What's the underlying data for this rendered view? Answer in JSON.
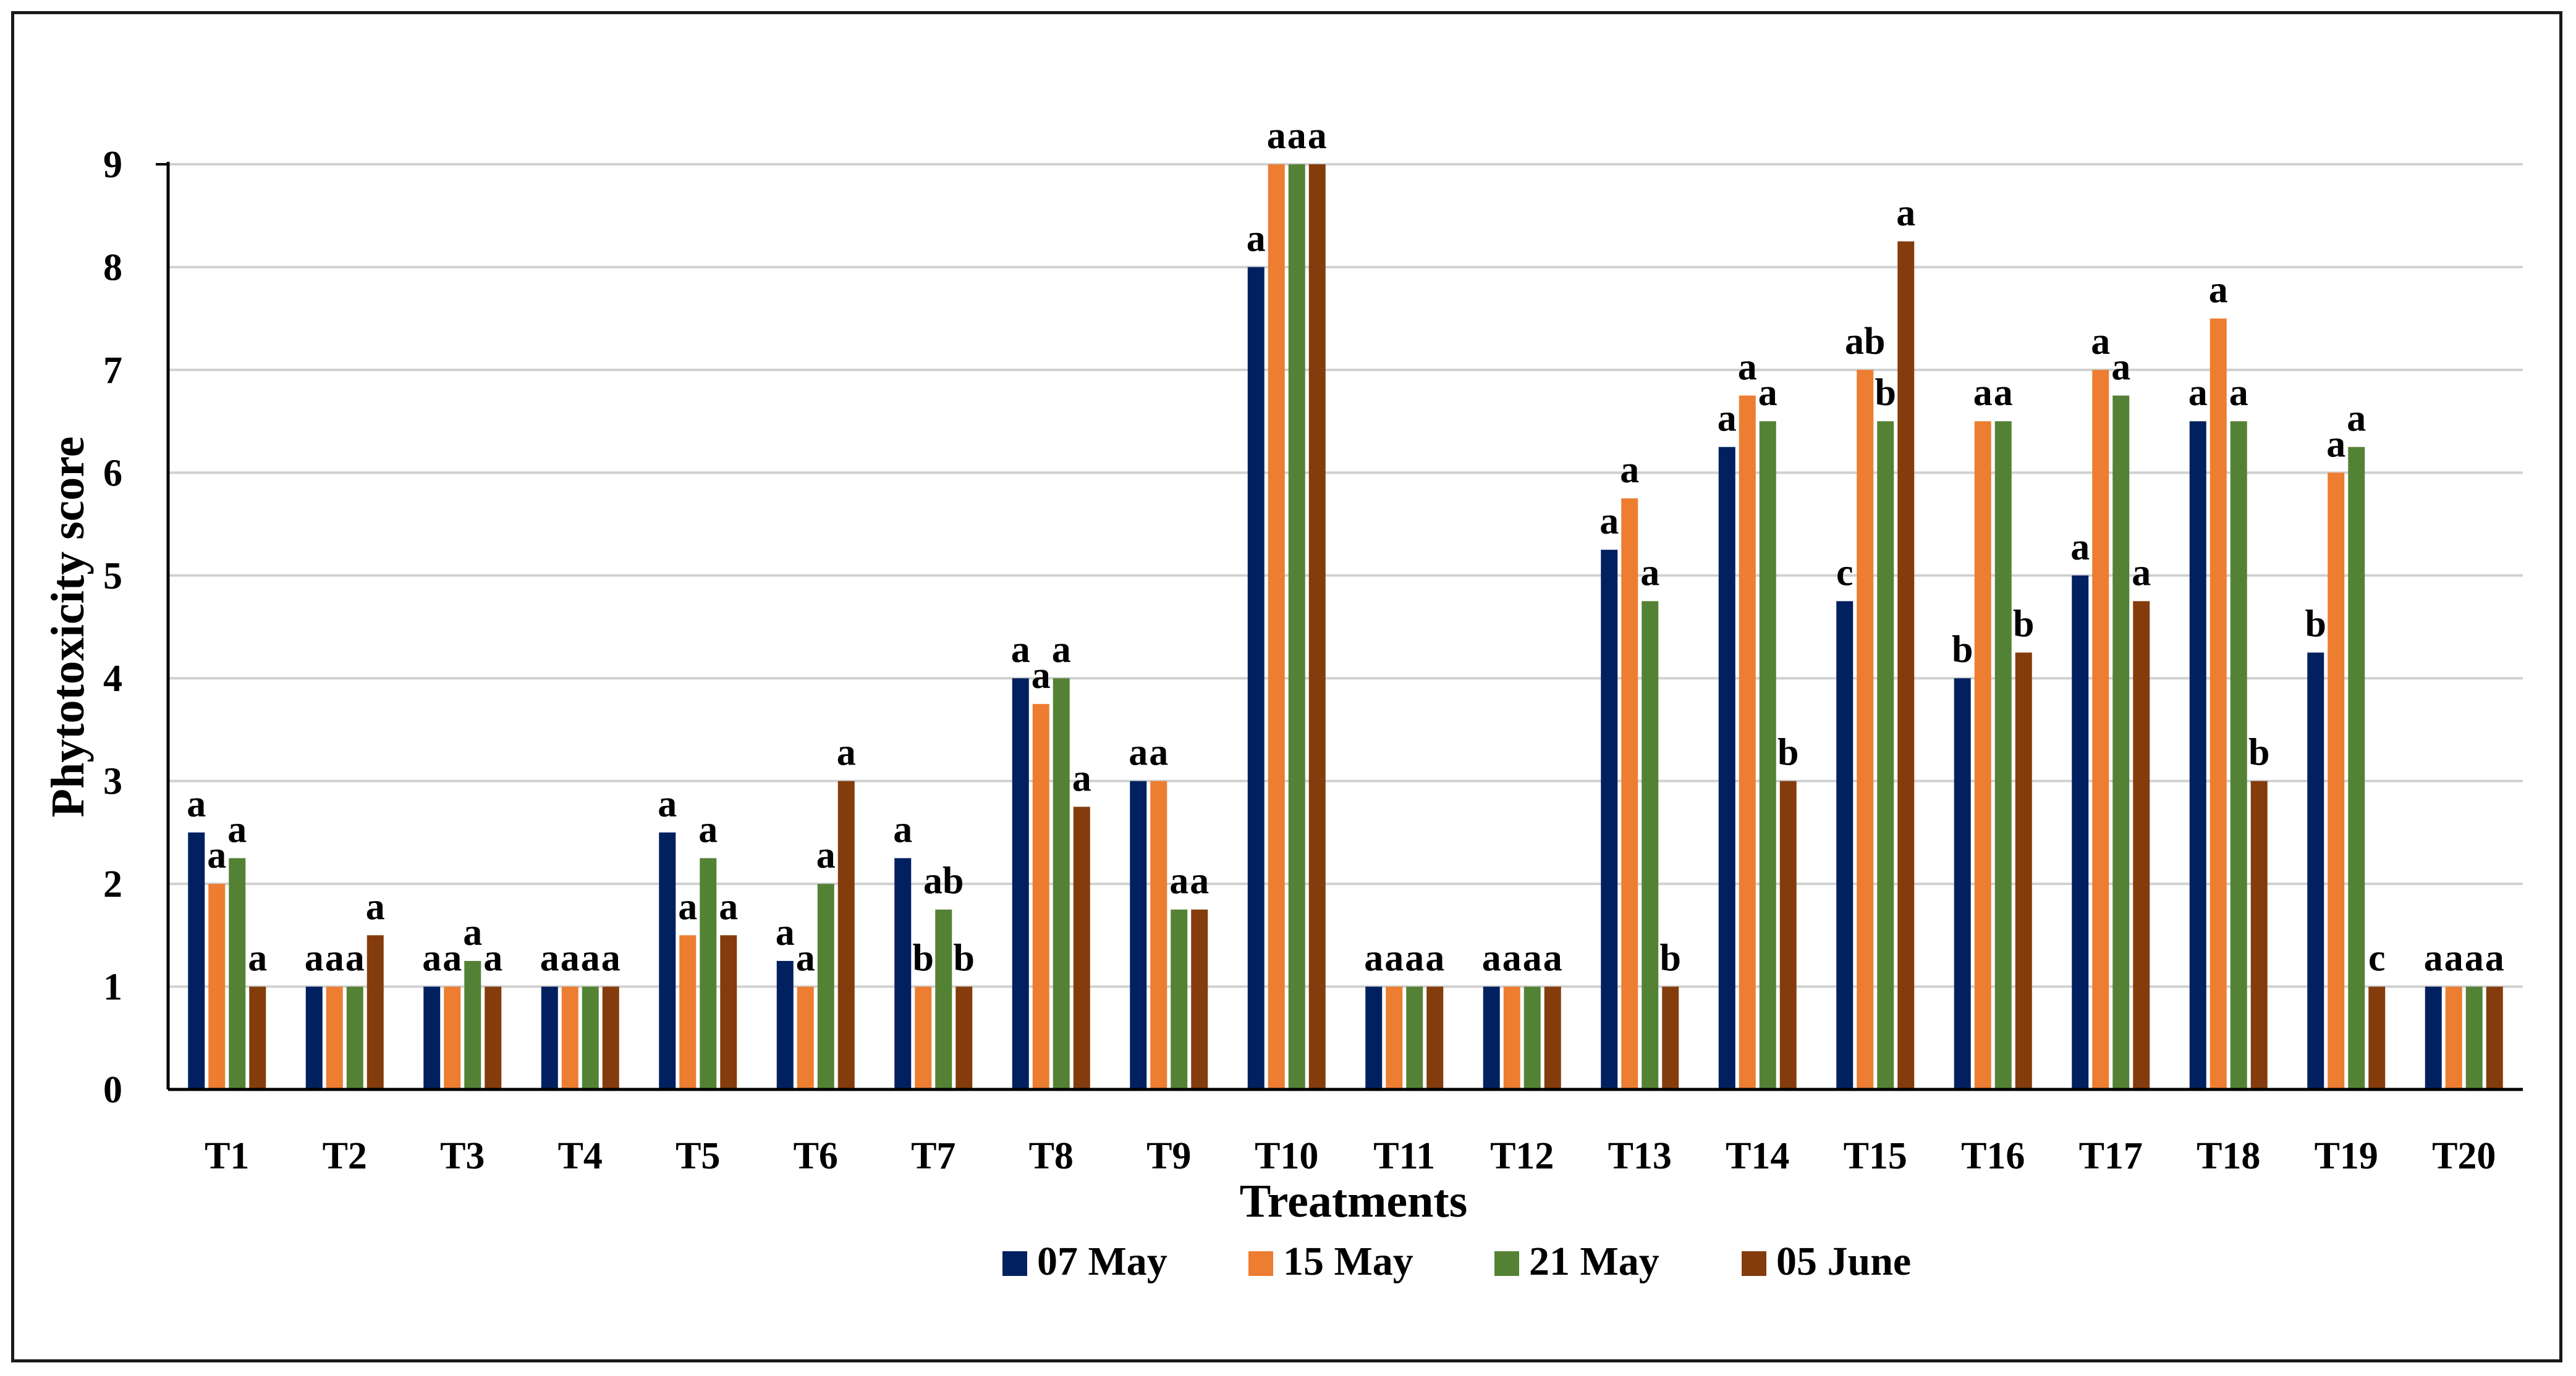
{
  "chart_data": {
    "type": "bar",
    "title": "",
    "xlabel": "Treatments",
    "ylabel": "Phytotoxicity score",
    "ylim": [
      0,
      9
    ],
    "yticks": [
      "0",
      "1",
      "2",
      "3",
      "4",
      "5",
      "6",
      "7",
      "8",
      "9"
    ],
    "grid": true,
    "legend_position": "bottom",
    "categories": [
      "T1",
      "T2",
      "T3",
      "T4",
      "T5",
      "T6",
      "T7",
      "T8",
      "T9",
      "T10",
      "T11",
      "T12",
      "T13",
      "T14",
      "T15",
      "T16",
      "T17",
      "T18",
      "T19",
      "T20"
    ],
    "series": [
      {
        "name": "07 May",
        "color": "#002060",
        "values": [
          2.5,
          1,
          1,
          1,
          2.5,
          1.25,
          2.25,
          4,
          3,
          8,
          1,
          1,
          5.25,
          6.25,
          4.75,
          4,
          5,
          6.5,
          4.25,
          1
        ],
        "labels": [
          "a",
          "a",
          "a",
          "a",
          "a",
          "a",
          "a",
          "a",
          "a",
          "a",
          "a",
          "a",
          "a",
          "a",
          "c",
          "b",
          "a",
          "a",
          "b",
          "a"
        ]
      },
      {
        "name": "15 May",
        "color": "#ED7D31",
        "values": [
          2,
          1,
          1,
          1,
          1.5,
          1,
          1,
          3.75,
          3,
          9,
          1,
          1,
          5.75,
          6.75,
          7,
          6.5,
          7,
          7.5,
          6,
          1
        ],
        "labels": [
          "a",
          "a",
          "a",
          "a",
          "a",
          "a",
          "b",
          "a",
          "a",
          "a",
          "a",
          "a",
          "a",
          "a",
          "ab",
          "a",
          "a",
          "a",
          "a",
          "a"
        ]
      },
      {
        "name": "21 May",
        "color": "#548235",
        "values": [
          2.25,
          1,
          1.25,
          1,
          2.25,
          2,
          1.75,
          4,
          1.75,
          9,
          1,
          1,
          4.75,
          6.5,
          6.5,
          6.5,
          6.75,
          6.5,
          6.25,
          1
        ],
        "labels": [
          "a",
          "a",
          "a",
          "a",
          "a",
          "a",
          "ab",
          "a",
          "a",
          "a",
          "a",
          "a",
          "a",
          "a",
          "b",
          "a",
          "a",
          "a",
          "a",
          "a"
        ]
      },
      {
        "name": "05 June",
        "color": "#843C0C",
        "values": [
          1,
          1.5,
          1,
          1,
          1.5,
          3,
          1,
          2.75,
          1.75,
          9,
          1,
          1,
          1,
          3,
          8.25,
          4.25,
          4.75,
          3,
          1,
          1
        ],
        "labels": [
          "a",
          "a",
          "a",
          "a",
          "a",
          "a",
          "b",
          "a",
          "a",
          "a",
          "a",
          "a",
          "b",
          "b",
          "a",
          "b",
          "a",
          "b",
          "c",
          "a"
        ]
      }
    ]
  }
}
